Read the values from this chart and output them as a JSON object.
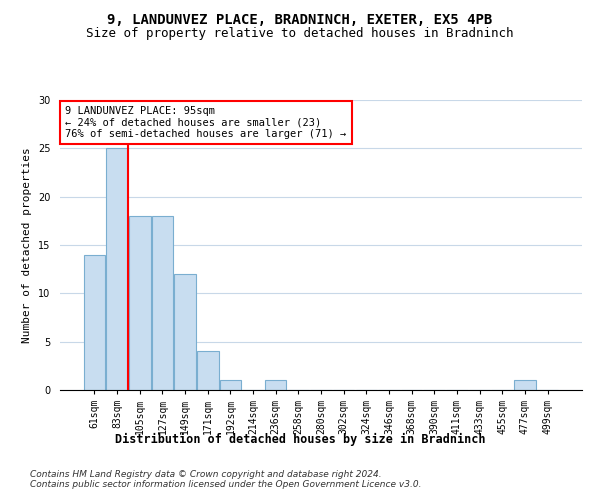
{
  "title1": "9, LANDUNVEZ PLACE, BRADNINCH, EXETER, EX5 4PB",
  "title2": "Size of property relative to detached houses in Bradninch",
  "xlabel": "Distribution of detached houses by size in Bradninch",
  "ylabel": "Number of detached properties",
  "categories": [
    "61sqm",
    "83sqm",
    "105sqm",
    "127sqm",
    "149sqm",
    "171sqm",
    "192sqm",
    "214sqm",
    "236sqm",
    "258sqm",
    "280sqm",
    "302sqm",
    "324sqm",
    "346sqm",
    "368sqm",
    "390sqm",
    "411sqm",
    "433sqm",
    "455sqm",
    "477sqm",
    "499sqm"
  ],
  "values": [
    14,
    25,
    18,
    18,
    12,
    4,
    1,
    0,
    1,
    0,
    0,
    0,
    0,
    0,
    0,
    0,
    0,
    0,
    0,
    1,
    0
  ],
  "bar_color": "#c8ddf0",
  "bar_edge_color": "#7aaed0",
  "red_line_x": 1.5,
  "annotation_text": "9 LANDUNVEZ PLACE: 95sqm\n← 24% of detached houses are smaller (23)\n76% of semi-detached houses are larger (71) →",
  "annotation_box_color": "white",
  "annotation_box_edge": "red",
  "red_line_color": "red",
  "ylim": [
    0,
    30
  ],
  "yticks": [
    0,
    5,
    10,
    15,
    20,
    25,
    30
  ],
  "grid_color": "#c8d8e8",
  "background_color": "white",
  "footer1": "Contains HM Land Registry data © Crown copyright and database right 2024.",
  "footer2": "Contains public sector information licensed under the Open Government Licence v3.0.",
  "title1_fontsize": 10,
  "title2_fontsize": 9,
  "xlabel_fontsize": 8.5,
  "ylabel_fontsize": 8,
  "tick_fontsize": 7,
  "annotation_fontsize": 7.5,
  "footer_fontsize": 6.5
}
